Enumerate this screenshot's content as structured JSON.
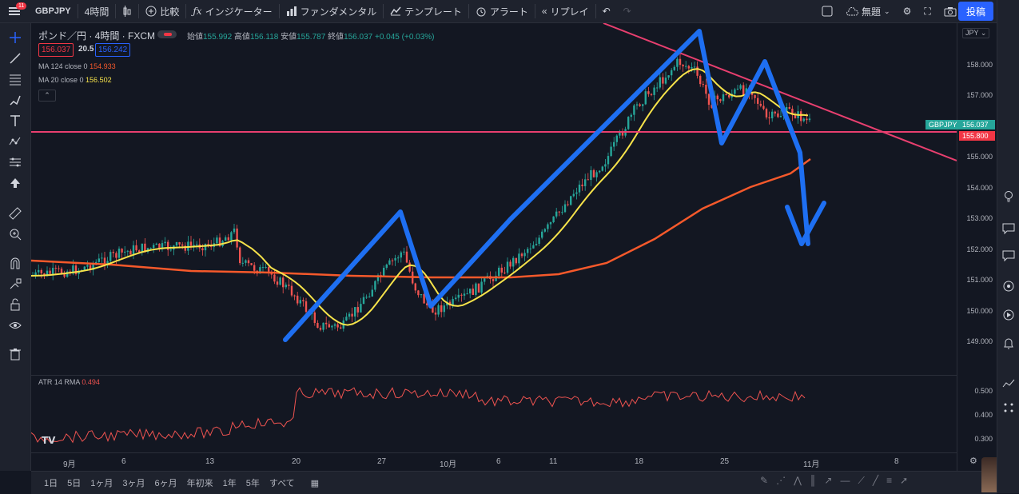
{
  "topbar": {
    "menu_badge": "11",
    "symbol": "GBPJPY",
    "interval": "4時間",
    "compare": "比較",
    "indicators": "インジケーター",
    "fundamentals": "ファンダメンタル",
    "templates": "テンプレート",
    "alert": "アラート",
    "replay": "リプレイ",
    "layout_name": "無題",
    "post": "投稿"
  },
  "legend": {
    "title": "ポンド／円 · 4時間 · FXCM",
    "open_label": "始値",
    "open": "155.992",
    "high_label": "高値",
    "high": "156.118",
    "low_label": "安値",
    "low": "155.787",
    "close_label": "終値",
    "close": "156.037",
    "change": "+0.045 (+0.03%)",
    "sell": "156.037",
    "spread": "20.5",
    "buy": "156.242",
    "ma1_label": "MA 124 close 0",
    "ma1_value": "154.933",
    "ma2_label": "MA 20 close 0",
    "ma2_value": "156.502",
    "atr_label": "ATR 14 RMA",
    "atr_value": "0.494",
    "currency": "JPY"
  },
  "price_axis": [
    "158.000",
    "157.000",
    "155.000",
    "154.000",
    "153.000",
    "152.000",
    "151.000",
    "150.000",
    "149.000"
  ],
  "price_tags": {
    "symbol": "GBPJPY",
    "last": "156.037",
    "line": "155.800"
  },
  "atr_axis": [
    "0.500",
    "0.400",
    "0.300"
  ],
  "time_axis": [
    "9月",
    "6",
    "13",
    "20",
    "27",
    "10月",
    "6",
    "11",
    "18",
    "25",
    "11月",
    "8"
  ],
  "ranges": [
    "1日",
    "5日",
    "1ヶ月",
    "3ヶ月",
    "6ヶ月",
    "年初来",
    "1年",
    "5年",
    "すべて"
  ],
  "colors": {
    "bg": "#131722",
    "ma20": "#f7e34a",
    "ma124": "#f6592b",
    "trend": "#e83f6f",
    "annotation": "#1e6ff2",
    "up": "#26a69a",
    "down": "#ef5350"
  }
}
